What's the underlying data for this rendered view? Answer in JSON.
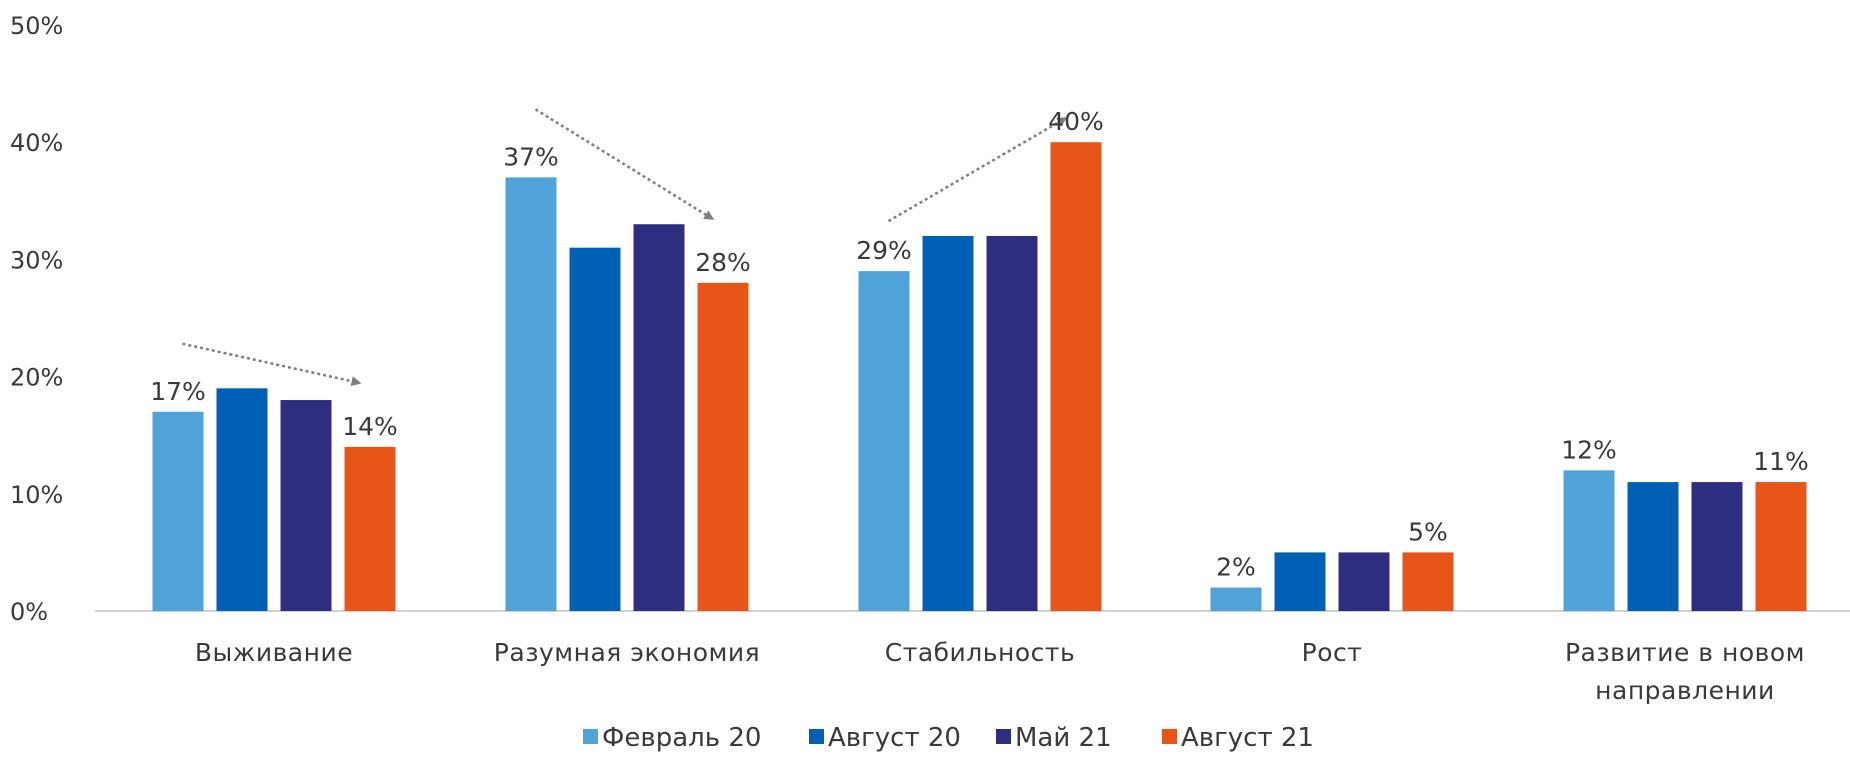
{
  "chart_data": {
    "type": "bar",
    "categories": [
      [
        "Выживание"
      ],
      [
        "Разумная экономия"
      ],
      [
        "Стабильность"
      ],
      [
        "Рост"
      ],
      [
        "Развитие в новом",
        "направлении"
      ]
    ],
    "series": [
      {
        "name": "Февраль 20",
        "color": "#4FA3D9",
        "values": [
          17,
          37,
          29,
          2,
          12
        ]
      },
      {
        "name": "Август 20",
        "color": "#0060B6",
        "values": [
          19,
          31,
          32,
          5,
          11
        ]
      },
      {
        "name": "Май 21",
        "color": "#2E2D80",
        "values": [
          18,
          33,
          32,
          5,
          11
        ]
      },
      {
        "name": "Август 21",
        "color": "#E85518",
        "values": [
          14,
          28,
          40,
          5,
          11
        ]
      }
    ],
    "data_labels": [
      {
        "series": 0,
        "category": 0,
        "text": "17%"
      },
      {
        "series": 3,
        "category": 0,
        "text": "14%"
      },
      {
        "series": 0,
        "category": 1,
        "text": "37%"
      },
      {
        "series": 3,
        "category": 1,
        "text": "28%"
      },
      {
        "series": 0,
        "category": 2,
        "text": "29%"
      },
      {
        "series": 3,
        "category": 2,
        "text": "40%"
      },
      {
        "series": 0,
        "category": 3,
        "text": "2%"
      },
      {
        "series": 3,
        "category": 3,
        "text": "5%"
      },
      {
        "series": 0,
        "category": 4,
        "text": "12%"
      },
      {
        "series": 3,
        "category": 4,
        "text": "11%"
      }
    ],
    "trend_arrows": [
      {
        "category": 0,
        "direction": "down"
      },
      {
        "category": 1,
        "direction": "down"
      },
      {
        "category": 2,
        "direction": "up"
      }
    ],
    "y_ticks": [
      "0%",
      "10%",
      "20%",
      "30%",
      "40%",
      "50%"
    ],
    "ylim": [
      0,
      50
    ],
    "grid": false,
    "legend_position": "bottom",
    "title": "",
    "xlabel": "",
    "ylabel": ""
  }
}
